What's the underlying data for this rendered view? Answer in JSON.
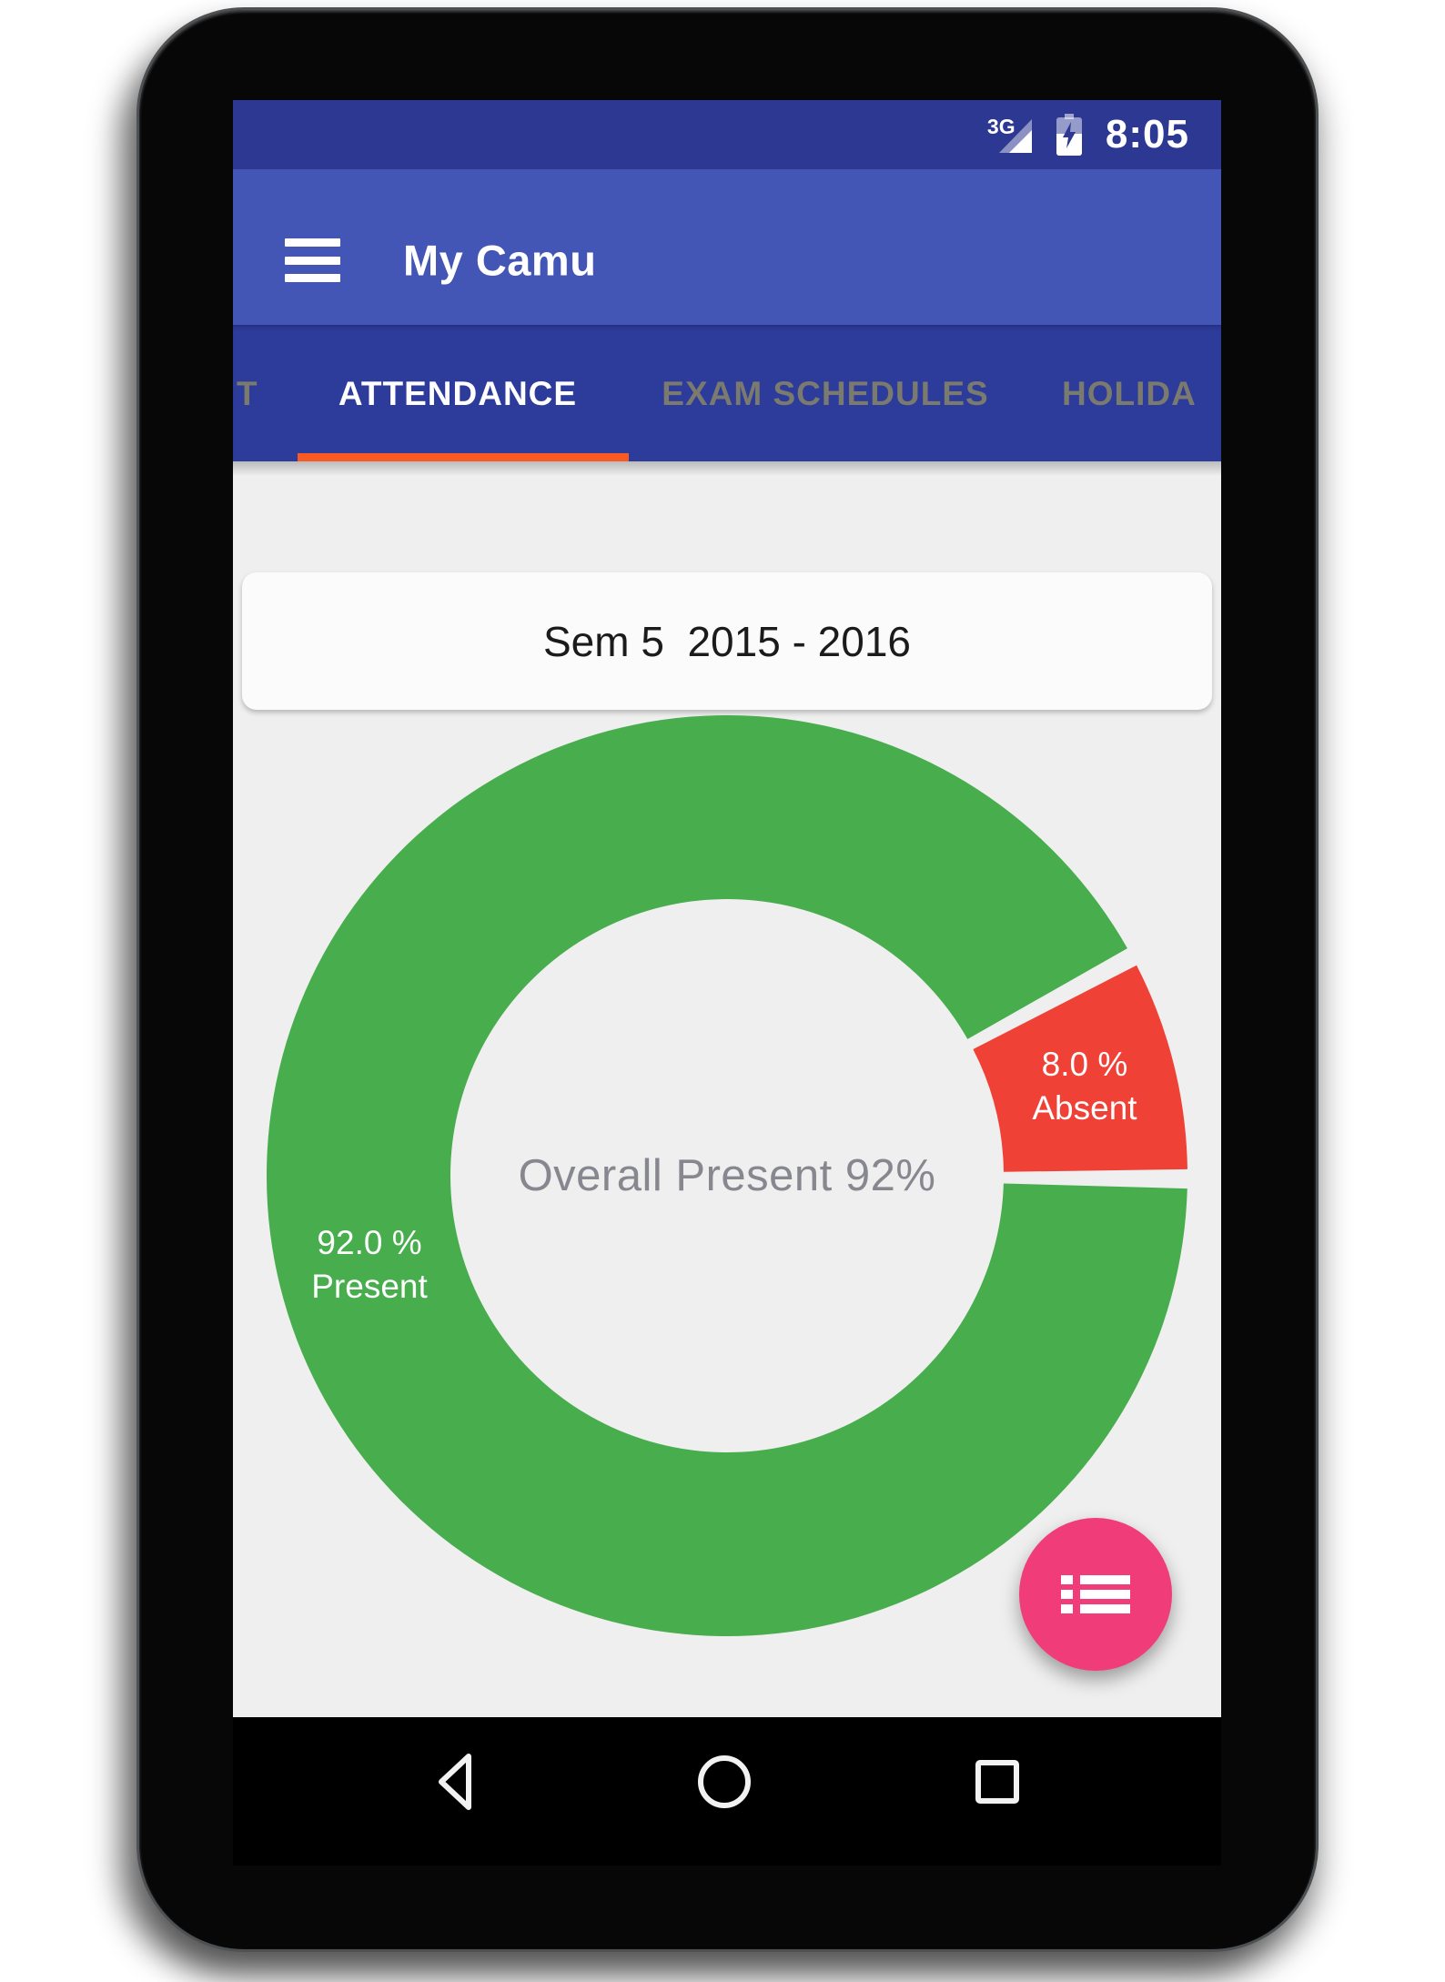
{
  "status_bar": {
    "network_label": "3G",
    "time": "8:05"
  },
  "app_bar": {
    "title": "My Camu"
  },
  "tab_bar": {
    "tabs": [
      {
        "label": "T",
        "active": false
      },
      {
        "label": "ATTENDANCE",
        "active": true
      },
      {
        "label": "EXAM SCHEDULES",
        "active": false
      },
      {
        "label": "HOLIDA",
        "active": false
      }
    ]
  },
  "semester_card": {
    "label": "Sem 5  2015 - 2016"
  },
  "chart_data": {
    "type": "pie",
    "style": "donut",
    "center_label": "Overall Present 92%",
    "unit": "%",
    "slices": [
      {
        "name": "Present",
        "value": 92.0,
        "value_label": "92.0 %",
        "name_label": "Present",
        "color": "#47AD4D"
      },
      {
        "name": "Absent",
        "value": 8.0,
        "value_label": "8.0 %",
        "name_label": "Absent",
        "color": "#F04137"
      }
    ],
    "rotation_deg": 0.4,
    "gap_deg": 2.4,
    "hole_ratio": 0.6,
    "labels_position": "mid-ring",
    "legend": "none"
  },
  "fab": {
    "icon": "list-icon",
    "color": "#F03C78"
  },
  "nav_bar": {
    "buttons": [
      "back",
      "home",
      "recents"
    ]
  },
  "colors": {
    "status_bar": "#2C3892",
    "app_bar": "#4355B5",
    "tab_bar": "#2D3B9B",
    "tab_active_text": "#FFFFFF",
    "tab_inactive_text": "#7A7A6E",
    "tab_indicator": "#F95A22",
    "content_bg": "#EFEFEF",
    "card_bg": "#FBFBFB",
    "center_text": "#87878F",
    "fab_pink": "#F03C78",
    "nav_icon": "#F2F2F2"
  }
}
